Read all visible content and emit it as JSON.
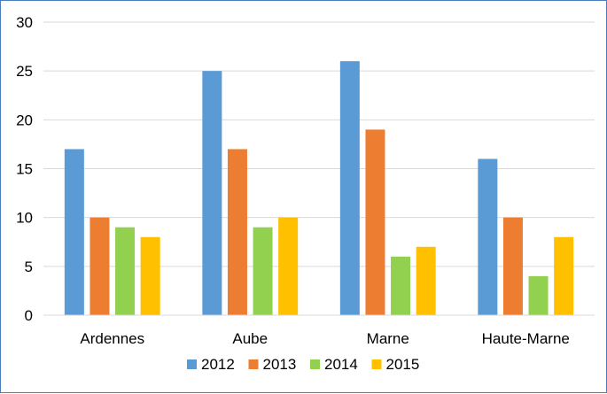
{
  "chart_data": {
    "type": "bar",
    "categories": [
      "Ardennes",
      "Aube",
      "Marne",
      "Haute-Marne"
    ],
    "series": [
      {
        "name": "2012",
        "color": "#5b9bd5",
        "values": [
          17,
          25,
          26,
          16
        ]
      },
      {
        "name": "2013",
        "color": "#ed7d31",
        "values": [
          10,
          17,
          19,
          10
        ]
      },
      {
        "name": "2014",
        "color": "#92d050",
        "values": [
          9,
          9,
          6,
          4
        ]
      },
      {
        "name": "2015",
        "color": "#ffc000",
        "values": [
          8,
          10,
          7,
          8
        ]
      }
    ],
    "title": "",
    "xlabel": "",
    "ylabel": "",
    "ylim": [
      0,
      30
    ],
    "yticks": [
      0,
      5,
      10,
      15,
      20,
      25,
      30
    ],
    "grid": true,
    "legend_position": "bottom"
  }
}
